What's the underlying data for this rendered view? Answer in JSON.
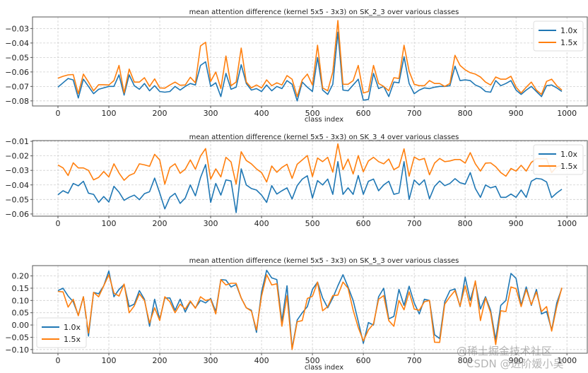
{
  "chart_data": [
    {
      "type": "line",
      "title": "mean attention difference (kernel 5x5 - 3x3) on SK_2_3 over various classes",
      "xlabel": "class index",
      "ylabel": "",
      "xlim": [
        -50,
        1040
      ],
      "ylim": [
        -0.0835,
        -0.022
      ],
      "xticks": [
        0,
        100,
        200,
        300,
        400,
        500,
        600,
        700,
        800,
        900,
        1000
      ],
      "yticks": [
        -0.08,
        -0.07,
        -0.06,
        -0.05,
        -0.04,
        -0.03
      ],
      "ytick_labels": [
        "−0.08",
        "−0.07",
        "−0.06",
        "−0.05",
        "−0.04",
        "−0.03"
      ],
      "grid": true,
      "legend": "top-right",
      "x_start": 0,
      "x_step": 10,
      "series": [
        {
          "name": "1.0x",
          "color": "#1f77b4",
          "values": [
            -0.0705,
            -0.0675,
            -0.0645,
            -0.0655,
            -0.078,
            -0.065,
            -0.07,
            -0.075,
            -0.072,
            -0.071,
            -0.07,
            -0.07,
            -0.062,
            -0.076,
            -0.062,
            -0.0695,
            -0.072,
            -0.068,
            -0.073,
            -0.0695,
            -0.0735,
            -0.074,
            -0.0735,
            -0.07,
            -0.0725,
            -0.07,
            -0.068,
            -0.069,
            -0.0555,
            -0.053,
            -0.07,
            -0.0675,
            -0.077,
            -0.061,
            -0.072,
            -0.0705,
            -0.055,
            -0.068,
            -0.0725,
            -0.0715,
            -0.0735,
            -0.069,
            -0.073,
            -0.07,
            -0.0715,
            -0.066,
            -0.0685,
            -0.08,
            -0.067,
            -0.0705,
            -0.0735,
            -0.05,
            -0.0725,
            -0.0755,
            -0.0685,
            -0.0325,
            -0.0725,
            -0.073,
            -0.069,
            -0.065,
            -0.0795,
            -0.079,
            -0.061,
            -0.0715,
            -0.07,
            -0.077,
            -0.067,
            -0.0675,
            -0.0495,
            -0.068,
            -0.075,
            -0.0725,
            -0.071,
            -0.0715,
            -0.0705,
            -0.07,
            -0.07,
            -0.0695,
            -0.056,
            -0.066,
            -0.0655,
            -0.066,
            -0.069,
            -0.0705,
            -0.0735,
            -0.074,
            -0.066,
            -0.0695,
            -0.068,
            -0.066,
            -0.0725,
            -0.0755,
            -0.0725,
            -0.07,
            -0.0735,
            -0.077,
            -0.0695,
            -0.069,
            -0.071,
            -0.0735
          ]
        },
        {
          "name": "1.5x",
          "color": "#ff7f0e",
          "values": [
            -0.0643,
            -0.063,
            -0.062,
            -0.0618,
            -0.075,
            -0.0615,
            -0.067,
            -0.073,
            -0.0688,
            -0.0688,
            -0.069,
            -0.066,
            -0.0555,
            -0.0745,
            -0.058,
            -0.067,
            -0.067,
            -0.064,
            -0.07,
            -0.0648,
            -0.071,
            -0.0712,
            -0.069,
            -0.067,
            -0.0692,
            -0.069,
            -0.0637,
            -0.0675,
            -0.042,
            -0.0395,
            -0.0665,
            -0.06,
            -0.0715,
            -0.049,
            -0.0695,
            -0.067,
            -0.0435,
            -0.067,
            -0.071,
            -0.069,
            -0.071,
            -0.0655,
            -0.0695,
            -0.0675,
            -0.069,
            -0.0625,
            -0.065,
            -0.077,
            -0.0655,
            -0.0615,
            -0.069,
            -0.0415,
            -0.071,
            -0.073,
            -0.06,
            -0.0245,
            -0.0685,
            -0.0685,
            -0.066,
            -0.0555,
            -0.0745,
            -0.0735,
            -0.0555,
            -0.068,
            -0.07,
            -0.073,
            -0.064,
            -0.0645,
            -0.0415,
            -0.0595,
            -0.0685,
            -0.0695,
            -0.0695,
            -0.066,
            -0.068,
            -0.068,
            -0.07,
            -0.068,
            -0.0485,
            -0.0555,
            -0.0585,
            -0.0605,
            -0.0615,
            -0.0635,
            -0.067,
            -0.069,
            -0.0635,
            -0.065,
            -0.065,
            -0.063,
            -0.0705,
            -0.0745,
            -0.0705,
            -0.067,
            -0.0725,
            -0.0755,
            -0.0665,
            -0.065,
            -0.0695,
            -0.0725
          ]
        }
      ]
    },
    {
      "type": "line",
      "title": "mean attention difference (kernel 5x5 - 3x3) on SK_3_4 over various classes",
      "xlabel": "",
      "ylabel": "",
      "xlim": [
        -50,
        1040
      ],
      "ylim": [
        -0.0615,
        -0.0095
      ],
      "xticks": [
        0,
        100,
        200,
        300,
        400,
        500,
        600,
        700,
        800,
        900,
        1000
      ],
      "yticks": [
        -0.06,
        -0.05,
        -0.04,
        -0.03,
        -0.02,
        -0.01
      ],
      "ytick_labels": [
        "−0.06",
        "−0.05",
        "−0.04",
        "−0.03",
        "−0.02",
        "−0.01"
      ],
      "grid": true,
      "legend": "top-right",
      "x_start": 0,
      "x_step": 10,
      "series": [
        {
          "name": "1.0x",
          "color": "#1f77b4",
          "values": [
            -0.0468,
            -0.044,
            -0.0457,
            -0.039,
            -0.0406,
            -0.0375,
            -0.0457,
            -0.0465,
            -0.052,
            -0.048,
            -0.0518,
            -0.041,
            -0.045,
            -0.0506,
            -0.0485,
            -0.047,
            -0.0502,
            -0.046,
            -0.0447,
            -0.0353,
            -0.0455,
            -0.0565,
            -0.0485,
            -0.0458,
            -0.0527,
            -0.049,
            -0.04,
            -0.0475,
            -0.035,
            -0.026,
            -0.052,
            -0.039,
            -0.047,
            -0.0365,
            -0.0373,
            -0.059,
            -0.029,
            -0.04,
            -0.0425,
            -0.0435,
            -0.047,
            -0.052,
            -0.0405,
            -0.0463,
            -0.044,
            -0.042,
            -0.0497,
            -0.0405,
            -0.036,
            -0.0337,
            -0.049,
            -0.037,
            -0.04,
            -0.036,
            -0.0465,
            -0.024,
            -0.0465,
            -0.042,
            -0.0465,
            -0.0335,
            -0.0465,
            -0.0375,
            -0.036,
            -0.044,
            -0.04,
            -0.0375,
            -0.0465,
            -0.0455,
            -0.024,
            -0.05,
            -0.0366,
            -0.04,
            -0.0365,
            -0.0495,
            -0.041,
            -0.0373,
            -0.0405,
            -0.039,
            -0.0357,
            -0.0385,
            -0.0395,
            -0.0315,
            -0.0425,
            -0.0485,
            -0.04,
            -0.042,
            -0.041,
            -0.0485,
            -0.0485,
            -0.0463,
            -0.0485,
            -0.0435,
            -0.0485,
            -0.0375,
            -0.0355,
            -0.036,
            -0.038,
            -0.0487,
            -0.0455,
            -0.043
          ]
        },
        {
          "name": "1.5x",
          "color": "#ff7f0e",
          "values": [
            -0.0263,
            -0.0283,
            -0.0335,
            -0.0248,
            -0.0283,
            -0.0283,
            -0.03,
            -0.0365,
            -0.0348,
            -0.0308,
            -0.0345,
            -0.0255,
            -0.0318,
            -0.0368,
            -0.0335,
            -0.032,
            -0.0255,
            -0.0262,
            -0.0272,
            -0.019,
            -0.0228,
            -0.0395,
            -0.028,
            -0.0255,
            -0.032,
            -0.0292,
            -0.0228,
            -0.0292,
            -0.0202,
            -0.015,
            -0.036,
            -0.029,
            -0.0345,
            -0.021,
            -0.0242,
            -0.0395,
            -0.0172,
            -0.0232,
            -0.0255,
            -0.029,
            -0.0315,
            -0.038,
            -0.027,
            -0.0313,
            -0.028,
            -0.0258,
            -0.0355,
            -0.0258,
            -0.0228,
            -0.0198,
            -0.0343,
            -0.0215,
            -0.024,
            -0.021,
            -0.0312,
            -0.0118,
            -0.0295,
            -0.0222,
            -0.0325,
            -0.0198,
            -0.031,
            -0.0235,
            -0.021,
            -0.024,
            -0.0255,
            -0.0222,
            -0.0295,
            -0.0275,
            -0.0152,
            -0.034,
            -0.0208,
            -0.0228,
            -0.0218,
            -0.033,
            -0.025,
            -0.0218,
            -0.024,
            -0.0235,
            -0.0225,
            -0.0225,
            -0.025,
            -0.0178,
            -0.0255,
            -0.0305,
            -0.025,
            -0.0248,
            -0.0275,
            -0.0315,
            -0.034,
            -0.0287,
            -0.0305,
            -0.0265,
            -0.0305,
            -0.0245,
            -0.022,
            -0.022,
            -0.022,
            -0.0315,
            -0.0275,
            -0.0265
          ]
        }
      ]
    },
    {
      "type": "line",
      "title": "mean attention difference (kernel 5x5 - 3x3) on SK_5_3 over various classes",
      "xlabel": "class index",
      "ylabel": "",
      "xlim": [
        -50,
        1040
      ],
      "ylim": [
        -0.115,
        0.242
      ],
      "xticks": [
        0,
        100,
        200,
        300,
        400,
        500,
        600,
        700,
        800,
        900,
        1000
      ],
      "yticks": [
        -0.1,
        -0.05,
        0.0,
        0.05,
        0.1,
        0.15,
        0.2
      ],
      "ytick_labels": [
        "−0.10",
        "−0.05",
        "0.00",
        "0.05",
        "0.10",
        "0.15",
        "0.20"
      ],
      "grid": true,
      "legend": "lower-left",
      "x_start": 0,
      "x_step": 10,
      "series": [
        {
          "name": "1.0x",
          "color": "#1f77b4",
          "values": [
            0.14,
            0.15,
            0.118,
            0.095,
            0.04,
            0.115,
            -0.045,
            0.133,
            0.127,
            0.16,
            0.22,
            0.115,
            0.145,
            0.165,
            0.075,
            0.085,
            0.14,
            0.105,
            -0.005,
            0.105,
            0.022,
            0.11,
            0.11,
            0.06,
            0.105,
            0.053,
            0.095,
            0.07,
            0.1,
            0.09,
            0.108,
            0.055,
            0.185,
            0.183,
            0.155,
            0.165,
            0.11,
            0.07,
            0.06,
            -0.03,
            0.135,
            0.223,
            0.192,
            0.185,
            0.015,
            0.16,
            -0.095,
            0.02,
            0.05,
            0.075,
            0.145,
            0.175,
            0.11,
            0.07,
            0.11,
            0.16,
            0.205,
            0.155,
            0.1,
            0.015,
            -0.075,
            0.01,
            0.0,
            0.115,
            0.15,
            0.025,
            0.035,
            0.145,
            0.08,
            0.158,
            0.09,
            0.045,
            0.105,
            0.1,
            -0.04,
            -0.055,
            0.095,
            0.14,
            0.147,
            0.075,
            0.195,
            0.1,
            0.175,
            0.065,
            0.115,
            0.06,
            -0.06,
            0.08,
            0.1,
            0.21,
            0.19,
            0.08,
            0.155,
            0.08,
            0.145,
            0.045,
            0.055,
            -0.02,
            0.09,
            0.15
          ]
        },
        {
          "name": "1.5x",
          "color": "#ff7f0e",
          "values": [
            0.137,
            0.135,
            0.073,
            0.105,
            0.038,
            0.115,
            -0.033,
            0.133,
            0.115,
            0.16,
            0.205,
            0.13,
            0.118,
            0.167,
            0.05,
            0.078,
            0.127,
            0.1,
            0.008,
            0.07,
            0.018,
            0.115,
            0.095,
            0.05,
            0.085,
            0.065,
            0.098,
            0.068,
            0.115,
            0.1,
            0.105,
            0.045,
            0.185,
            0.163,
            0.17,
            0.17,
            0.11,
            0.07,
            0.057,
            -0.02,
            0.118,
            0.205,
            0.163,
            0.168,
            -0.005,
            0.12,
            -0.1,
            0.013,
            0.018,
            0.108,
            0.117,
            0.175,
            0.058,
            0.075,
            0.12,
            0.122,
            0.175,
            0.15,
            0.06,
            -0.01,
            -0.065,
            -0.02,
            0.005,
            0.105,
            0.12,
            0.018,
            -0.005,
            0.1,
            0.062,
            0.135,
            0.065,
            0.06,
            0.095,
            0.1,
            -0.07,
            -0.071,
            0.085,
            0.115,
            0.14,
            0.077,
            0.16,
            0.075,
            0.18,
            0.018,
            0.11,
            0.05,
            -0.08,
            0.058,
            0.055,
            0.155,
            0.148,
            0.075,
            0.145,
            0.083,
            0.135,
            0.055,
            0.075,
            -0.025,
            0.075,
            0.152
          ]
        }
      ]
    }
  ],
  "watermark": {
    "line1": "@稀土掘金技术社区",
    "line2": "CSDN @进阶媛小吴"
  }
}
